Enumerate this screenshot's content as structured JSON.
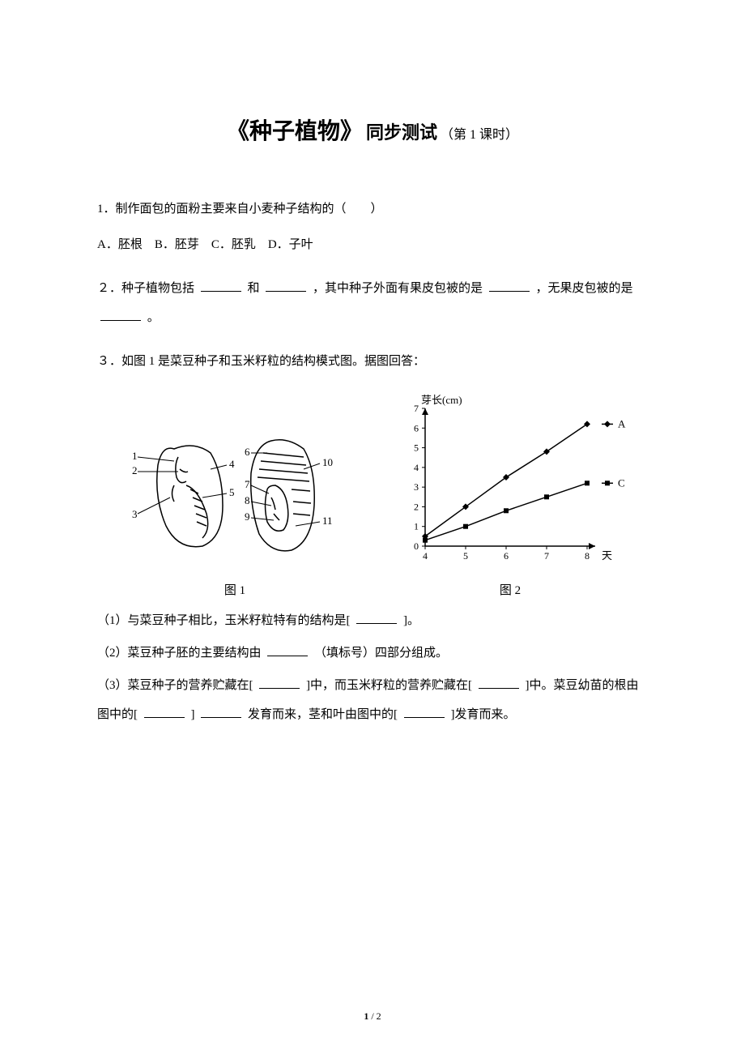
{
  "title": {
    "main": "《种子植物》",
    "sub": "同步测试",
    "small": "（第 1 课时）"
  },
  "q1": {
    "stem": "1．制作面包的面粉主要来自小麦种子结构的（　　）",
    "options": "A．胚根　B．胚芽　C．胚乳　D．子叶"
  },
  "q2": {
    "part1": "２．种子植物包括 ",
    "part2": " 和 ",
    "part3": " ，其中种子外面有果皮包被的是 ",
    "part4": " ，无果皮包被的是 ",
    "part5": " 。"
  },
  "q3": {
    "stem": "３．如图 1 是菜豆种子和玉米籽粒的结构模式图。据图回答：",
    "fig1_label": "图 1",
    "fig2_label": "图 2",
    "sub1_a": "（1）与菜豆种子相比，玉米籽粒特有的结构是[ ",
    "sub1_b": " ]。",
    "sub2_a": "（2）菜豆种子胚的主要结构由 ",
    "sub2_b": " （填标号）四部分组成。",
    "sub3_a": "（3）菜豆种子的营养贮藏在[ ",
    "sub3_b": " ]中，而玉米籽粒的营养贮藏在[ ",
    "sub3_c": " ]中。菜豆幼苗的根由图中的[ ",
    "sub3_d": " ] ",
    "sub3_e": " 发育而来，茎和叶由图中的[ ",
    "sub3_f": " ]发育而来。"
  },
  "chart": {
    "ylabel": "芽长(cm)",
    "xlabel": "天",
    "y_ticks": [
      "0",
      "1",
      "2",
      "3",
      "4",
      "5",
      "6",
      "7"
    ],
    "x_ticks": [
      "4",
      "5",
      "6",
      "7",
      "8"
    ],
    "series_A": {
      "label": "A",
      "color": "#000000",
      "points": [
        [
          4,
          0.5
        ],
        [
          5,
          2
        ],
        [
          6,
          3.5
        ],
        [
          7,
          4.8
        ],
        [
          8,
          6.2
        ]
      ]
    },
    "series_C": {
      "label": "C",
      "color": "#000000",
      "points": [
        [
          4,
          0.3
        ],
        [
          5,
          1
        ],
        [
          6,
          1.8
        ],
        [
          7,
          2.5
        ],
        [
          8,
          3.2
        ]
      ]
    },
    "axis_color": "#000000",
    "line_width": 1.5,
    "marker_size": 3
  },
  "seed_diagram": {
    "left_labels": [
      "1",
      "2",
      "3",
      "4",
      "5"
    ],
    "right_labels": [
      "6",
      "7",
      "8",
      "9",
      "10",
      "11"
    ],
    "stroke_color": "#000000",
    "stroke_width": 1.5
  },
  "footer": {
    "page": "1",
    "total": "2"
  }
}
